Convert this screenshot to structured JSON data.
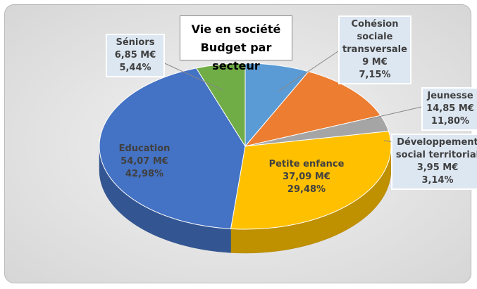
{
  "chart_data": {
    "type": "pie3d",
    "title": "Vie en société",
    "subtitle": "Budget par secteur",
    "categories": [
      "Cohésion sociale transversale",
      "Jeunesse",
      "Développement social territorial",
      "Petite enfance",
      "Education",
      "Séniors"
    ],
    "values": [
      9,
      14.85,
      3.95,
      37.09,
      54.07,
      6.85
    ],
    "value_labels": [
      "9 M€",
      "14,85 M€",
      "3,95 M€",
      "37,09 M€",
      "54,07 M€",
      "6,85 M€"
    ],
    "percentages": [
      7.15,
      11.8,
      3.14,
      29.48,
      42.98,
      5.44
    ],
    "percentage_labels": [
      "7,15%",
      "11,80%",
      "3,14%",
      "29,48%",
      "42,98%",
      "5,44%"
    ],
    "colors": [
      "#5b9bd5",
      "#ed7d31",
      "#a5a5a5",
      "#ffc000",
      "#4472c4",
      "#70ad47"
    ]
  }
}
